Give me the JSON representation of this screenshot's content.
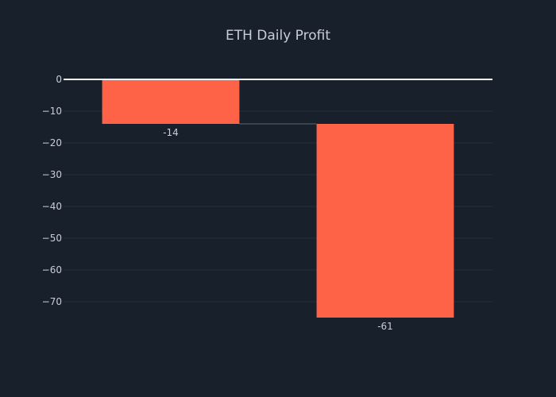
{
  "chart_data": {
    "type": "waterfall",
    "title": "ETH Daily Profit",
    "xlabel": "",
    "ylabel": "",
    "categories": [
      "",
      ""
    ],
    "series": [
      {
        "increments": [
          -14,
          -61
        ],
        "text_labels": [
          "-14",
          "-61"
        ]
      }
    ],
    "ylim": [
      -80,
      0
    ],
    "yticks": [
      0,
      -10,
      -20,
      -30,
      -40,
      -50,
      -60,
      -70
    ],
    "ytick_labels": [
      "0",
      "−10",
      "−20",
      "−30",
      "−40",
      "−50",
      "−60",
      "−70"
    ],
    "grid": true,
    "legend": "none",
    "colors": {
      "background": "#17202b",
      "grid": "#25303d",
      "zero_line": "#ffffff",
      "decreasing": "#ff6347",
      "connector": "#5b6570",
      "text": "#c9ced6"
    }
  }
}
